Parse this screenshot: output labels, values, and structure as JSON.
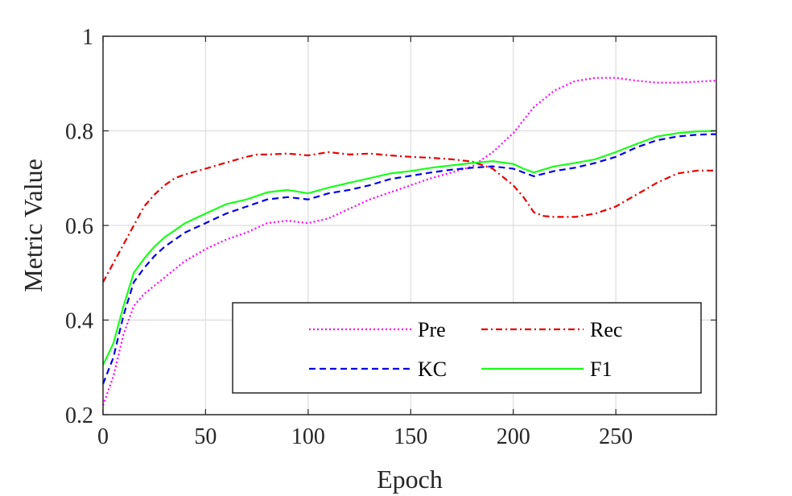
{
  "chart_data": {
    "type": "line",
    "xlabel": "Epoch",
    "ylabel": "Metric Value",
    "xlim": [
      0,
      299
    ],
    "ylim": [
      0.2,
      1.0
    ],
    "xticks": [
      "0",
      "50",
      "100",
      "150",
      "200",
      "250"
    ],
    "yticks": [
      "0.2",
      "0.4",
      "0.6",
      "0.8",
      "1"
    ],
    "grid": true,
    "legend_position": "bottom-right",
    "series": [
      {
        "name": "Pre",
        "color": "#ff00ff",
        "style": "dotted",
        "x": [
          0,
          5,
          10,
          15,
          20,
          30,
          40,
          50,
          60,
          70,
          80,
          90,
          100,
          110,
          120,
          130,
          140,
          150,
          160,
          170,
          180,
          190,
          200,
          210,
          220,
          230,
          240,
          250,
          260,
          270,
          280,
          290,
          299
        ],
        "y": [
          0.22,
          0.28,
          0.37,
          0.43,
          0.455,
          0.49,
          0.525,
          0.55,
          0.57,
          0.585,
          0.605,
          0.61,
          0.605,
          0.615,
          0.635,
          0.655,
          0.67,
          0.685,
          0.7,
          0.712,
          0.725,
          0.755,
          0.795,
          0.85,
          0.885,
          0.905,
          0.912,
          0.912,
          0.906,
          0.902,
          0.902,
          0.904,
          0.906
        ]
      },
      {
        "name": "Rec",
        "color": "#e60000",
        "style": "dashdot",
        "x": [
          0,
          5,
          10,
          15,
          20,
          25,
          30,
          35,
          40,
          50,
          60,
          70,
          75,
          80,
          90,
          100,
          110,
          120,
          130,
          140,
          150,
          160,
          170,
          180,
          190,
          200,
          205,
          210,
          215,
          220,
          230,
          240,
          250,
          260,
          270,
          280,
          290,
          299
        ],
        "y": [
          0.48,
          0.52,
          0.56,
          0.6,
          0.64,
          0.665,
          0.685,
          0.7,
          0.708,
          0.72,
          0.733,
          0.745,
          0.75,
          0.75,
          0.752,
          0.748,
          0.755,
          0.75,
          0.752,
          0.748,
          0.745,
          0.743,
          0.74,
          0.735,
          0.72,
          0.685,
          0.66,
          0.628,
          0.62,
          0.618,
          0.618,
          0.625,
          0.64,
          0.665,
          0.69,
          0.71,
          0.716,
          0.716
        ]
      },
      {
        "name": "KC",
        "color": "#0000e6",
        "style": "dashed",
        "x": [
          0,
          5,
          10,
          15,
          20,
          25,
          30,
          40,
          50,
          60,
          70,
          80,
          90,
          100,
          110,
          120,
          130,
          140,
          150,
          160,
          170,
          180,
          190,
          200,
          205,
          210,
          220,
          230,
          240,
          250,
          260,
          270,
          280,
          290,
          299
        ],
        "y": [
          0.265,
          0.32,
          0.41,
          0.48,
          0.51,
          0.535,
          0.555,
          0.585,
          0.605,
          0.625,
          0.64,
          0.655,
          0.66,
          0.655,
          0.668,
          0.675,
          0.685,
          0.698,
          0.705,
          0.712,
          0.718,
          0.722,
          0.725,
          0.72,
          0.712,
          0.704,
          0.715,
          0.722,
          0.732,
          0.745,
          0.765,
          0.78,
          0.788,
          0.792,
          0.793
        ]
      },
      {
        "name": "F1",
        "color": "#1aff1a",
        "style": "solid",
        "x": [
          0,
          5,
          10,
          15,
          20,
          25,
          30,
          40,
          50,
          60,
          70,
          80,
          90,
          100,
          110,
          120,
          130,
          140,
          150,
          160,
          170,
          180,
          190,
          200,
          205,
          210,
          220,
          230,
          240,
          250,
          260,
          270,
          280,
          290,
          299
        ],
        "y": [
          0.305,
          0.35,
          0.43,
          0.5,
          0.53,
          0.555,
          0.575,
          0.605,
          0.625,
          0.645,
          0.655,
          0.67,
          0.675,
          0.668,
          0.68,
          0.69,
          0.7,
          0.71,
          0.715,
          0.722,
          0.727,
          0.732,
          0.736,
          0.73,
          0.72,
          0.712,
          0.725,
          0.732,
          0.74,
          0.755,
          0.772,
          0.788,
          0.795,
          0.799,
          0.8
        ]
      }
    ]
  }
}
